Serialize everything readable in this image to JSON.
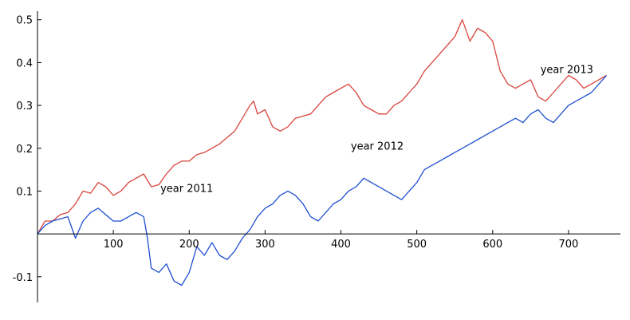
{
  "chart_data": {
    "type": "line",
    "title": "",
    "xlabel": "",
    "ylabel": "",
    "xlim": [
      0,
      760
    ],
    "ylim": [
      -0.16,
      0.52
    ],
    "grid": false,
    "x_ticks": [
      {
        "value": 100,
        "label": "100"
      },
      {
        "value": 200,
        "label": "200"
      },
      {
        "value": 300,
        "label": "300"
      },
      {
        "value": 400,
        "label": "400"
      },
      {
        "value": 500,
        "label": "500"
      },
      {
        "value": 600,
        "label": "600"
      },
      {
        "value": 700,
        "label": "700"
      }
    ],
    "y_ticks": [
      {
        "value": -0.1,
        "label": "-0.1"
      },
      {
        "value": 0.1,
        "label": "0.1"
      },
      {
        "value": 0.2,
        "label": "0.2"
      },
      {
        "value": 0.3,
        "label": "0.3"
      },
      {
        "value": 0.4,
        "label": "0.4"
      },
      {
        "value": 0.5,
        "label": "0.5"
      }
    ],
    "annotations": [
      {
        "text": "year 2011",
        "x": 162,
        "y": 0.098
      },
      {
        "text": "year 2012",
        "x": 413,
        "y": 0.197
      },
      {
        "text": "year 2013",
        "x": 663,
        "y": 0.376
      }
    ],
    "series": [
      {
        "color": "#d9443c",
        "points": [
          [
            0,
            0.0
          ],
          [
            10,
            0.03
          ],
          [
            20,
            0.03
          ],
          [
            30,
            0.045
          ],
          [
            40,
            0.05
          ],
          [
            50,
            0.07
          ],
          [
            60,
            0.1
          ],
          [
            70,
            0.095
          ],
          [
            80,
            0.12
          ],
          [
            90,
            0.11
          ],
          [
            100,
            0.09
          ],
          [
            110,
            0.1
          ],
          [
            120,
            0.12
          ],
          [
            130,
            0.13
          ],
          [
            140,
            0.14
          ],
          [
            150,
            0.11
          ],
          [
            160,
            0.115
          ],
          [
            170,
            0.14
          ],
          [
            180,
            0.16
          ],
          [
            190,
            0.17
          ],
          [
            200,
            0.17
          ],
          [
            210,
            0.185
          ],
          [
            220,
            0.19
          ],
          [
            230,
            0.2
          ],
          [
            240,
            0.21
          ],
          [
            250,
            0.225
          ],
          [
            260,
            0.24
          ],
          [
            270,
            0.27
          ],
          [
            280,
            0.3
          ],
          [
            285,
            0.31
          ],
          [
            290,
            0.28
          ],
          [
            300,
            0.29
          ],
          [
            310,
            0.25
          ],
          [
            320,
            0.24
          ],
          [
            330,
            0.25
          ],
          [
            340,
            0.27
          ],
          [
            350,
            0.275
          ],
          [
            360,
            0.28
          ],
          [
            370,
            0.3
          ],
          [
            380,
            0.32
          ],
          [
            390,
            0.33
          ],
          [
            400,
            0.34
          ],
          [
            410,
            0.35
          ],
          [
            420,
            0.33
          ],
          [
            430,
            0.3
          ],
          [
            440,
            0.29
          ],
          [
            450,
            0.28
          ],
          [
            460,
            0.28
          ],
          [
            470,
            0.3
          ],
          [
            480,
            0.31
          ],
          [
            490,
            0.33
          ],
          [
            500,
            0.35
          ],
          [
            510,
            0.38
          ],
          [
            520,
            0.4
          ],
          [
            530,
            0.42
          ],
          [
            540,
            0.44
          ],
          [
            550,
            0.46
          ],
          [
            560,
            0.5
          ],
          [
            570,
            0.45
          ],
          [
            580,
            0.48
          ],
          [
            590,
            0.47
          ],
          [
            600,
            0.45
          ],
          [
            610,
            0.38
          ],
          [
            620,
            0.35
          ],
          [
            630,
            0.34
          ],
          [
            640,
            0.35
          ],
          [
            650,
            0.36
          ],
          [
            660,
            0.32
          ],
          [
            670,
            0.31
          ],
          [
            680,
            0.33
          ],
          [
            690,
            0.35
          ],
          [
            700,
            0.37
          ],
          [
            710,
            0.36
          ],
          [
            720,
            0.34
          ],
          [
            730,
            0.35
          ],
          [
            740,
            0.36
          ],
          [
            750,
            0.37
          ]
        ]
      },
      {
        "color": "#1f4fd1",
        "points": [
          [
            0,
            0.0
          ],
          [
            10,
            0.02
          ],
          [
            20,
            0.03
          ],
          [
            30,
            0.035
          ],
          [
            40,
            0.04
          ],
          [
            50,
            -0.01
          ],
          [
            60,
            0.03
          ],
          [
            70,
            0.05
          ],
          [
            80,
            0.06
          ],
          [
            90,
            0.045
          ],
          [
            100,
            0.03
          ],
          [
            110,
            0.03
          ],
          [
            120,
            0.04
          ],
          [
            130,
            0.05
          ],
          [
            140,
            0.04
          ],
          [
            145,
            -0.01
          ],
          [
            150,
            -0.08
          ],
          [
            160,
            -0.09
          ],
          [
            170,
            -0.07
          ],
          [
            180,
            -0.11
          ],
          [
            190,
            -0.12
          ],
          [
            200,
            -0.09
          ],
          [
            210,
            -0.03
          ],
          [
            220,
            -0.05
          ],
          [
            230,
            -0.02
          ],
          [
            240,
            -0.05
          ],
          [
            250,
            -0.06
          ],
          [
            260,
            -0.04
          ],
          [
            270,
            -0.01
          ],
          [
            280,
            0.01
          ],
          [
            290,
            0.04
          ],
          [
            300,
            0.06
          ],
          [
            310,
            0.07
          ],
          [
            320,
            0.09
          ],
          [
            330,
            0.1
          ],
          [
            340,
            0.09
          ],
          [
            350,
            0.07
          ],
          [
            360,
            0.04
          ],
          [
            370,
            0.03
          ],
          [
            380,
            0.05
          ],
          [
            390,
            0.07
          ],
          [
            400,
            0.08
          ],
          [
            410,
            0.1
          ],
          [
            420,
            0.11
          ],
          [
            430,
            0.13
          ],
          [
            440,
            0.12
          ],
          [
            450,
            0.11
          ],
          [
            460,
            0.1
          ],
          [
            470,
            0.09
          ],
          [
            480,
            0.08
          ],
          [
            490,
            0.1
          ],
          [
            500,
            0.12
          ],
          [
            510,
            0.15
          ],
          [
            520,
            0.16
          ],
          [
            530,
            0.17
          ],
          [
            540,
            0.18
          ],
          [
            550,
            0.19
          ],
          [
            560,
            0.2
          ],
          [
            570,
            0.21
          ],
          [
            580,
            0.22
          ],
          [
            590,
            0.23
          ],
          [
            600,
            0.24
          ],
          [
            610,
            0.25
          ],
          [
            620,
            0.26
          ],
          [
            630,
            0.27
          ],
          [
            640,
            0.26
          ],
          [
            650,
            0.28
          ],
          [
            660,
            0.29
          ],
          [
            670,
            0.27
          ],
          [
            680,
            0.26
          ],
          [
            690,
            0.28
          ],
          [
            700,
            0.3
          ],
          [
            710,
            0.31
          ],
          [
            720,
            0.32
          ],
          [
            730,
            0.33
          ],
          [
            740,
            0.35
          ],
          [
            750,
            0.37
          ]
        ]
      }
    ]
  }
}
